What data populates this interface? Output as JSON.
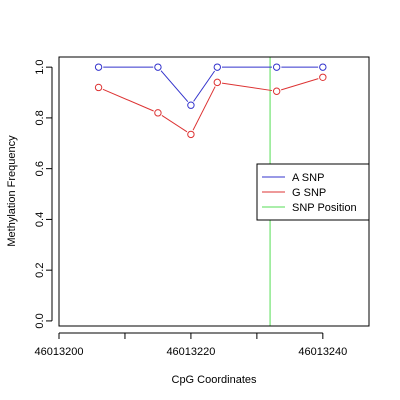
{
  "chart_data": {
    "type": "line",
    "xlabel": "CpG Coordinates",
    "ylabel": "Methylation Frequency",
    "xlim": [
      46013200,
      46013247
    ],
    "ylim": [
      -0.02,
      1.04
    ],
    "x_ticks": [
      46013200,
      46013220,
      46013240
    ],
    "x_minor_ticks": [
      46013210,
      46013230
    ],
    "y_ticks": [
      0.0,
      0.2,
      0.4,
      0.6,
      0.8,
      1.0
    ],
    "y_tick_labels": [
      "0.0",
      "0.2",
      "0.4",
      "0.6",
      "0.8",
      "1.0"
    ],
    "x_tick_labels": [
      "46013200",
      "46013220",
      "46013240"
    ],
    "grid": false,
    "legend_position": "right",
    "series": [
      {
        "name": "A SNP",
        "color": "#3333cc",
        "x": [
          46013206,
          46013215,
          46013220,
          46013224,
          46013233,
          46013240
        ],
        "values": [
          1.0,
          1.0,
          0.85,
          1.0,
          1.0,
          1.0
        ]
      },
      {
        "name": "G SNP",
        "color": "#dd3333",
        "x": [
          46013206,
          46013215,
          46013220,
          46013224,
          46013233,
          46013240
        ],
        "values": [
          0.92,
          0.82,
          0.735,
          0.94,
          0.905,
          0.96
        ]
      }
    ],
    "vline": {
      "name": "SNP Position",
      "color": "#55dd55",
      "x": 46013232
    }
  }
}
